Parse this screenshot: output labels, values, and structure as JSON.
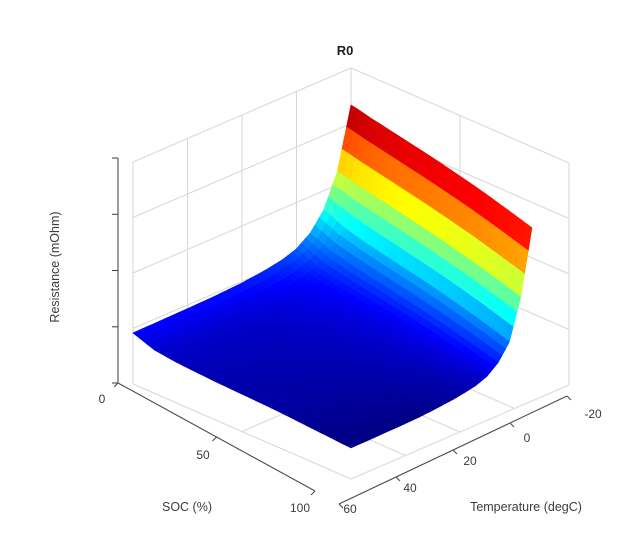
{
  "chart_data": {
    "type": "surface",
    "title": "R0",
    "xlabel": "SOC (%)",
    "ylabel": "Temperature (degC)",
    "zlabel": "Resistance (mOhm)",
    "colormap": "jet",
    "view": "3d",
    "grid": true,
    "x_ticks": [
      "0",
      "50",
      "100"
    ],
    "y_ticks": [
      "60",
      "40",
      "20",
      "0",
      "-20"
    ],
    "z_tick_labels_shown": false,
    "zlim": [
      0,
      6
    ],
    "soc": [
      0,
      10,
      20,
      30,
      40,
      50,
      60,
      70,
      80,
      90,
      100
    ],
    "temperature_degC": [
      60,
      50,
      40,
      30,
      25,
      20,
      15,
      10,
      5,
      0,
      -5,
      -10,
      -15,
      -20
    ],
    "resistance_mOhm": [
      [
        1.38,
        1.17,
        1.1,
        1.06,
        1.03,
        1.01,
        0.99,
        0.96,
        0.92,
        0.88,
        0.84
      ],
      [
        1.39,
        1.18,
        1.1,
        1.07,
        1.04,
        1.01,
        0.99,
        0.97,
        0.93,
        0.89,
        0.85
      ],
      [
        1.4,
        1.19,
        1.11,
        1.08,
        1.05,
        1.03,
        1.0,
        0.98,
        0.94,
        0.9,
        0.86
      ],
      [
        1.42,
        1.21,
        1.13,
        1.1,
        1.07,
        1.05,
        1.02,
        1.0,
        0.96,
        0.92,
        0.88
      ],
      [
        1.44,
        1.23,
        1.15,
        1.12,
        1.09,
        1.07,
        1.04,
        1.02,
        0.98,
        0.94,
        0.9
      ],
      [
        1.46,
        1.26,
        1.18,
        1.14,
        1.12,
        1.09,
        1.07,
        1.04,
        1.01,
        0.97,
        0.93
      ],
      [
        1.5,
        1.3,
        1.22,
        1.18,
        1.15,
        1.13,
        1.1,
        1.08,
        1.04,
        1.0,
        0.96
      ],
      [
        1.55,
        1.35,
        1.27,
        1.23,
        1.2,
        1.17,
        1.15,
        1.12,
        1.08,
        1.05,
        1.01
      ],
      [
        1.62,
        1.42,
        1.34,
        1.3,
        1.27,
        1.24,
        1.21,
        1.19,
        1.15,
        1.11,
        1.07
      ],
      [
        1.75,
        1.55,
        1.47,
        1.43,
        1.4,
        1.37,
        1.34,
        1.31,
        1.27,
        1.23,
        1.19
      ],
      [
        2.01,
        1.81,
        1.73,
        1.68,
        1.65,
        1.62,
        1.59,
        1.56,
        1.52,
        1.48,
        1.43
      ],
      [
        2.48,
        2.28,
        2.19,
        2.14,
        2.1,
        2.07,
        2.04,
        2.0,
        1.96,
        1.91,
        1.86
      ],
      [
        3.36,
        3.27,
        3.22,
        3.18,
        3.15,
        3.12,
        3.09,
        3.06,
        3.02,
        2.98,
        2.94
      ],
      [
        5.0,
        4.92,
        4.88,
        4.85,
        4.83,
        4.81,
        4.79,
        4.77,
        4.74,
        4.71,
        4.68
      ]
    ]
  }
}
